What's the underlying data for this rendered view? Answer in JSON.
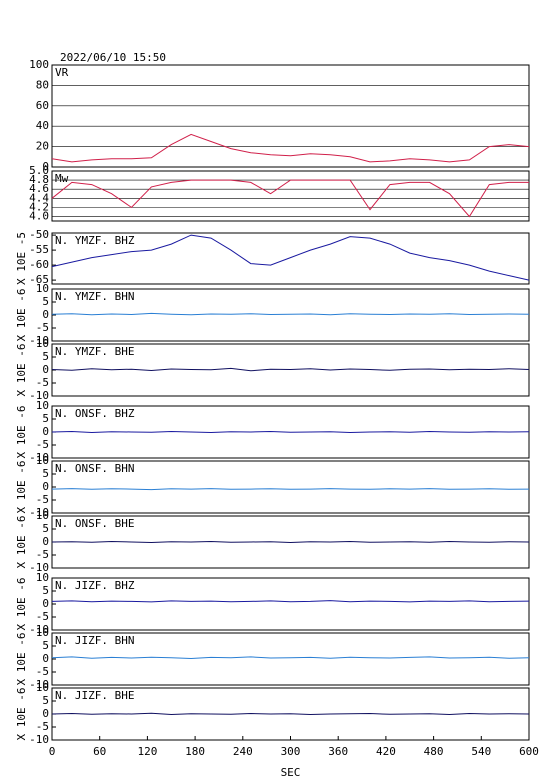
{
  "chart_data": [
    {
      "type": "line",
      "title": "2022/06/10 15:50",
      "label": "VR",
      "color": "#d0204a",
      "grid": true,
      "xlim": [
        0,
        600
      ],
      "ylim": [
        0,
        100
      ],
      "yticks": [
        0,
        20,
        40,
        60,
        80,
        100
      ],
      "x": [
        0,
        25,
        50,
        75,
        100,
        125,
        150,
        175,
        200,
        225,
        250,
        275,
        300,
        325,
        350,
        375,
        400,
        425,
        450,
        475,
        500,
        525,
        550,
        575,
        600
      ],
      "values": [
        8,
        5,
        7,
        8,
        8,
        9,
        22,
        32,
        25,
        18,
        14,
        12,
        11,
        13,
        12,
        10,
        5,
        6,
        8,
        7,
        5,
        7,
        20,
        22,
        20
      ]
    },
    {
      "type": "line",
      "label": "Mw",
      "color": "#d0204a",
      "grid": true,
      "xlim": [
        0,
        600
      ],
      "ylim": [
        3.9,
        5.0
      ],
      "yticks": [
        {
          "value": 4.0,
          "label": "4.0"
        },
        4.2,
        4.4,
        4.6,
        4.8,
        {
          "value": 5.0,
          "label": "5.0"
        }
      ],
      "x": [
        0,
        25,
        50,
        75,
        100,
        125,
        150,
        175,
        200,
        225,
        250,
        275,
        300,
        325,
        350,
        375,
        400,
        425,
        450,
        475,
        500,
        525,
        550,
        575,
        600
      ],
      "values": [
        4.4,
        4.75,
        4.7,
        4.5,
        4.2,
        4.65,
        4.75,
        4.8,
        4.8,
        4.8,
        4.75,
        4.5,
        4.8,
        4.8,
        4.8,
        4.8,
        4.15,
        4.7,
        4.75,
        4.75,
        4.5,
        4.0,
        4.7,
        4.75,
        4.75
      ]
    },
    {
      "type": "line",
      "label": "N. YMZF. BHZ",
      "y_label": "X 10E -5",
      "color": "#1a1aa0",
      "xlim": [
        0,
        600
      ],
      "ylim": [
        -66.3,
        -49.3
      ],
      "yticks": [
        -65,
        -60,
        -55,
        -50
      ],
      "x": [
        0,
        25,
        50,
        75,
        100,
        125,
        150,
        175,
        200,
        225,
        250,
        275,
        300,
        325,
        350,
        375,
        400,
        425,
        450,
        475,
        500,
        525,
        550,
        575,
        600
      ],
      "values": [
        -60.5,
        -59,
        -57.5,
        -56.5,
        -55.5,
        -55,
        -53,
        -50,
        -51,
        -55,
        -59.5,
        -60,
        -57.5,
        -55,
        -53,
        -50.5,
        -51,
        -53,
        -56,
        -57.5,
        -58.5,
        -60,
        -62,
        -63.5,
        -65
      ]
    },
    {
      "type": "line",
      "label": "N. YMZF. BHN",
      "y_label": "X 10E -6",
      "color": "#2a7fd4",
      "xlim": [
        0,
        600
      ],
      "ylim": [
        -10,
        10
      ],
      "yticks": [
        -10,
        -5,
        0,
        5,
        10
      ],
      "x": [
        0,
        25,
        50,
        75,
        100,
        125,
        150,
        175,
        200,
        225,
        250,
        275,
        300,
        325,
        350,
        375,
        400,
        425,
        450,
        475,
        500,
        525,
        550,
        575,
        600
      ],
      "values": [
        0.3,
        0.5,
        0.1,
        0.4,
        0.2,
        0.6,
        0.3,
        0.1,
        0.4,
        0.3,
        0.5,
        0.2,
        0.3,
        0.4,
        0.1,
        0.5,
        0.3,
        0.2,
        0.4,
        0.3,
        0.5,
        0.2,
        0.3,
        0.4,
        0.3
      ]
    },
    {
      "type": "line",
      "label": "N. YMZF. BHE",
      "y_label": "X 10E -6",
      "color": "#101060",
      "xlim": [
        0,
        600
      ],
      "ylim": [
        -10,
        10
      ],
      "yticks": [
        -10,
        -5,
        0,
        5,
        10
      ],
      "x": [
        0,
        25,
        50,
        75,
        100,
        125,
        150,
        175,
        200,
        225,
        250,
        275,
        300,
        325,
        350,
        375,
        400,
        425,
        450,
        475,
        500,
        525,
        550,
        575,
        600
      ],
      "values": [
        0.2,
        -0.1,
        0.5,
        0.1,
        0.3,
        -0.2,
        0.4,
        0.2,
        0.1,
        0.6,
        -0.3,
        0.3,
        0.2,
        0.5,
        0.0,
        0.4,
        0.2,
        -0.1,
        0.3,
        0.4,
        0.1,
        0.3,
        0.2,
        0.5,
        0.2
      ]
    },
    {
      "type": "line",
      "label": "N. ONSF. BHZ",
      "y_label": "X 10E -6",
      "color": "#1a1aa0",
      "xlim": [
        0,
        600
      ],
      "ylim": [
        -10,
        10
      ],
      "yticks": [
        -10,
        -5,
        0,
        5,
        10
      ],
      "x": [
        0,
        25,
        50,
        75,
        100,
        125,
        150,
        175,
        200,
        225,
        250,
        275,
        300,
        325,
        350,
        375,
        400,
        425,
        450,
        475,
        500,
        525,
        550,
        575,
        600
      ],
      "values": [
        0.0,
        0.2,
        -0.2,
        0.1,
        0.0,
        -0.1,
        0.2,
        0.0,
        -0.2,
        0.1,
        0.0,
        0.2,
        -0.1,
        0.0,
        0.1,
        -0.2,
        0.0,
        0.1,
        -0.1,
        0.2,
        0.0,
        -0.1,
        0.1,
        0.0,
        0.1
      ]
    },
    {
      "type": "line",
      "label": "N. ONSF. BHN",
      "y_label": "X 10E -6",
      "color": "#2a7fd4",
      "xlim": [
        0,
        600
      ],
      "ylim": [
        -10,
        10
      ],
      "yticks": [
        -10,
        -5,
        0,
        5,
        10
      ],
      "x": [
        0,
        25,
        50,
        75,
        100,
        125,
        150,
        175,
        200,
        225,
        250,
        275,
        300,
        325,
        350,
        375,
        400,
        425,
        450,
        475,
        500,
        525,
        550,
        575,
        600
      ],
      "values": [
        -0.8,
        -0.6,
        -0.9,
        -0.7,
        -0.8,
        -1.0,
        -0.7,
        -0.8,
        -0.6,
        -0.9,
        -0.8,
        -0.7,
        -0.9,
        -0.8,
        -0.6,
        -0.8,
        -0.9,
        -0.7,
        -0.8,
        -0.6,
        -0.9,
        -0.8,
        -0.7,
        -0.9,
        -0.8
      ]
    },
    {
      "type": "line",
      "label": "N. ONSF. BHE",
      "y_label": "X 10E -6",
      "color": "#101060",
      "xlim": [
        0,
        600
      ],
      "ylim": [
        -10,
        10
      ],
      "yticks": [
        -10,
        -5,
        0,
        5,
        10
      ],
      "x": [
        0,
        25,
        50,
        75,
        100,
        125,
        150,
        175,
        200,
        225,
        250,
        275,
        300,
        325,
        350,
        375,
        400,
        425,
        450,
        475,
        500,
        525,
        550,
        575,
        600
      ],
      "values": [
        0.0,
        0.1,
        -0.1,
        0.2,
        0.0,
        -0.2,
        0.1,
        0.0,
        0.2,
        -0.1,
        0.0,
        0.1,
        -0.2,
        0.1,
        0.0,
        0.2,
        -0.1,
        0.0,
        0.1,
        -0.1,
        0.2,
        0.0,
        -0.1,
        0.1,
        0.0
      ]
    },
    {
      "type": "line",
      "label": "N. JIZF. BHZ",
      "y_label": "X 10E -6",
      "color": "#1a1aa0",
      "xlim": [
        0,
        600
      ],
      "ylim": [
        -10,
        10
      ],
      "yticks": [
        -10,
        -5,
        0,
        5,
        10
      ],
      "x": [
        0,
        25,
        50,
        75,
        100,
        125,
        150,
        175,
        200,
        225,
        250,
        275,
        300,
        325,
        350,
        375,
        400,
        425,
        450,
        475,
        500,
        525,
        550,
        575,
        600
      ],
      "values": [
        1.0,
        1.2,
        0.9,
        1.1,
        1.0,
        0.8,
        1.2,
        1.0,
        1.1,
        0.9,
        1.0,
        1.2,
        0.9,
        1.0,
        1.3,
        0.9,
        1.1,
        1.0,
        0.8,
        1.1,
        1.0,
        1.2,
        0.9,
        1.0,
        1.1
      ]
    },
    {
      "type": "line",
      "label": "N. JIZF. BHN",
      "y_label": "X 10E -6",
      "color": "#2a7fd4",
      "xlim": [
        0,
        600
      ],
      "ylim": [
        -10,
        10
      ],
      "yticks": [
        -10,
        -5,
        0,
        5,
        10
      ],
      "x": [
        0,
        25,
        50,
        75,
        100,
        125,
        150,
        175,
        200,
        225,
        250,
        275,
        300,
        325,
        350,
        375,
        400,
        425,
        450,
        475,
        500,
        525,
        550,
        575,
        600
      ],
      "values": [
        0.5,
        0.8,
        0.3,
        0.6,
        0.4,
        0.7,
        0.5,
        0.2,
        0.6,
        0.5,
        0.8,
        0.4,
        0.5,
        0.6,
        0.3,
        0.7,
        0.5,
        0.4,
        0.6,
        0.8,
        0.4,
        0.5,
        0.7,
        0.3,
        0.5
      ]
    },
    {
      "type": "line",
      "label": "N. JIZF. BHE",
      "y_label": "X 10E -6",
      "color": "#101060",
      "xlim": [
        0,
        600
      ],
      "ylim": [
        -10,
        10
      ],
      "yticks": [
        -10,
        -5,
        0,
        5,
        10
      ],
      "xticks": [
        0,
        60,
        120,
        180,
        240,
        300,
        360,
        420,
        480,
        540,
        600
      ],
      "xlabel": "SEC",
      "x": [
        0,
        25,
        50,
        75,
        100,
        125,
        150,
        175,
        200,
        225,
        250,
        275,
        300,
        325,
        350,
        375,
        400,
        425,
        450,
        475,
        500,
        525,
        550,
        575,
        600
      ],
      "values": [
        0.0,
        0.2,
        -0.1,
        0.1,
        0.0,
        0.3,
        -0.2,
        0.1,
        0.0,
        -0.1,
        0.2,
        0.0,
        0.1,
        -0.2,
        0.0,
        0.1,
        0.2,
        -0.1,
        0.0,
        0.1,
        -0.2,
        0.2,
        0.0,
        0.1,
        0.0
      ]
    }
  ]
}
